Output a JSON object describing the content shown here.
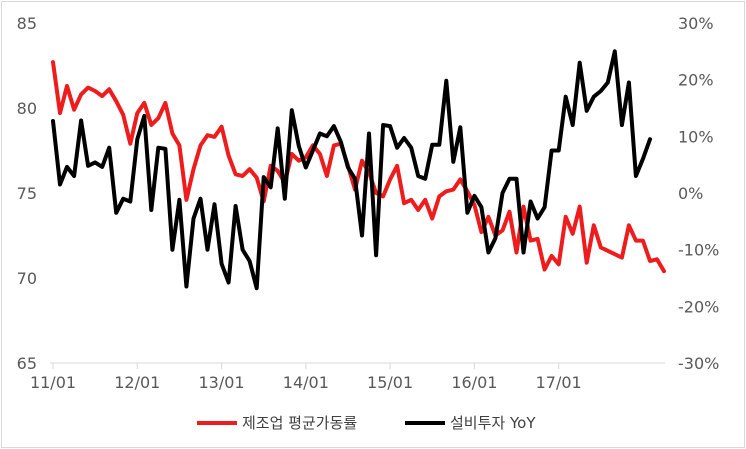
{
  "chart_data": {
    "type": "line",
    "title": "",
    "x_tick_labels": [
      "11/01",
      "12/01",
      "13/01",
      "14/01",
      "15/01",
      "16/01",
      "17/01"
    ],
    "x_start": "2011-01",
    "y_left": {
      "ylim": [
        65,
        85
      ],
      "ticks": [
        "65",
        "70",
        "75",
        "80",
        "85"
      ]
    },
    "y_right": {
      "ylim": [
        -30,
        30
      ],
      "ticks": [
        "-30%",
        "-20%",
        "-10%",
        "0%",
        "10%",
        "20%",
        "30%"
      ]
    },
    "grid": "none",
    "legend_position": "bottom",
    "series": [
      {
        "name": "제조업 평균가동률",
        "axis": "left",
        "color": "#ee1c1c",
        "values": [
          82.7,
          79.7,
          81.3,
          79.9,
          80.8,
          81.2,
          81.0,
          80.7,
          81.1,
          80.4,
          79.6,
          77.9,
          79.7,
          80.3,
          79.0,
          79.4,
          80.3,
          78.5,
          77.8,
          74.6,
          76.4,
          77.8,
          78.4,
          78.3,
          78.9,
          77.2,
          76.1,
          76.0,
          76.4,
          75.9,
          74.5,
          76.6,
          76.3,
          75.6,
          77.3,
          76.9,
          77.1,
          77.8,
          77.3,
          76.0,
          77.8,
          77.9,
          76.6,
          75.2,
          76.9,
          76.2,
          75.0,
          74.8,
          75.8,
          76.6,
          74.4,
          74.6,
          74.0,
          74.6,
          73.5,
          74.8,
          75.1,
          75.2,
          75.8,
          75.1,
          74.3,
          72.7,
          73.6,
          72.5,
          72.8,
          73.9,
          71.5,
          74.2,
          72.2,
          72.3,
          70.5,
          71.3,
          70.8,
          73.6,
          72.6,
          74.2,
          70.9,
          73.1,
          71.8,
          71.6,
          71.4,
          71.2,
          73.1,
          72.2,
          72.2,
          71.0,
          71.1,
          70.4
        ]
      },
      {
        "name": "설비투자 YoY",
        "axis": "right",
        "color": "#000000",
        "values": [
          12.7,
          1.5,
          4.6,
          3.0,
          12.8,
          4.8,
          5.4,
          4.6,
          8.0,
          -3.5,
          -1.0,
          -1.5,
          9.5,
          13.6,
          -3.0,
          8.0,
          7.8,
          -10.0,
          -1.2,
          -16.5,
          -4.5,
          -1.0,
          -10.0,
          -2.0,
          -12.5,
          -15.8,
          -2.3,
          -10.0,
          -12.0,
          -16.8,
          2.8,
          1.0,
          11.4,
          -1.0,
          14.6,
          8.3,
          4.5,
          7.5,
          10.5,
          10.0,
          11.8,
          9.0,
          4.5,
          2.5,
          -7.5,
          10.5,
          -11.0,
          12.0,
          11.8,
          8.0,
          9.7,
          8.0,
          3.0,
          2.5,
          8.5,
          8.5,
          19.8,
          5.5,
          11.6,
          -3.5,
          -0.5,
          -2.5,
          -10.5,
          -8.0,
          0.0,
          2.5,
          2.5,
          -10.5,
          -1.5,
          -4.5,
          -2.5,
          7.5,
          7.5,
          17.0,
          12.0,
          23.0,
          14.5,
          17.0,
          18.0,
          19.5,
          25.0,
          12.0,
          19.5,
          3.0,
          6.0,
          9.5
        ]
      }
    ],
    "legend": [
      {
        "label": "제조업 평균가동률",
        "color": "#ee1c1c"
      },
      {
        "label": "설비투자 YoY",
        "color": "#000000"
      }
    ]
  }
}
